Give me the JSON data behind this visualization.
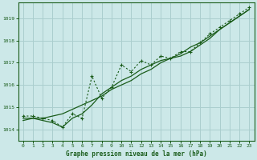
{
  "title": "Graphe pression niveau de la mer (hPa)",
  "background_color": "#cce8e8",
  "grid_color": "#aacece",
  "line_color": "#1a5c1a",
  "text_color": "#1a5c1a",
  "xlim": [
    -0.5,
    23.5
  ],
  "ylim": [
    1013.5,
    1019.7
  ],
  "yticks": [
    1014,
    1015,
    1016,
    1017,
    1018,
    1019
  ],
  "xticks": [
    0,
    1,
    2,
    3,
    4,
    5,
    6,
    7,
    8,
    9,
    10,
    11,
    12,
    13,
    14,
    15,
    16,
    17,
    18,
    19,
    20,
    21,
    22,
    23
  ],
  "series_dotted": [
    1014.6,
    1014.6,
    1014.5,
    1014.4,
    1014.1,
    1014.7,
    1014.5,
    1016.4,
    1015.4,
    1015.9,
    1016.9,
    1016.6,
    1017.1,
    1016.9,
    1017.3,
    1017.2,
    1017.5,
    1017.5,
    1017.9,
    1018.3,
    1018.6,
    1018.9,
    1019.2,
    1019.5
  ],
  "series_smooth1": [
    1014.5,
    1014.5,
    1014.4,
    1014.3,
    1014.1,
    1014.5,
    1014.7,
    1015.1,
    1015.6,
    1015.9,
    1016.2,
    1016.4,
    1016.7,
    1016.9,
    1017.1,
    1017.2,
    1017.3,
    1017.5,
    1017.8,
    1018.1,
    1018.5,
    1018.8,
    1019.1,
    1019.4
  ],
  "series_smooth2": [
    1014.4,
    1014.5,
    1014.5,
    1014.6,
    1014.7,
    1014.9,
    1015.1,
    1015.3,
    1015.5,
    1015.8,
    1016.0,
    1016.2,
    1016.5,
    1016.7,
    1017.0,
    1017.2,
    1017.4,
    1017.7,
    1017.9,
    1018.2,
    1018.5,
    1018.8,
    1019.1,
    1019.4
  ]
}
